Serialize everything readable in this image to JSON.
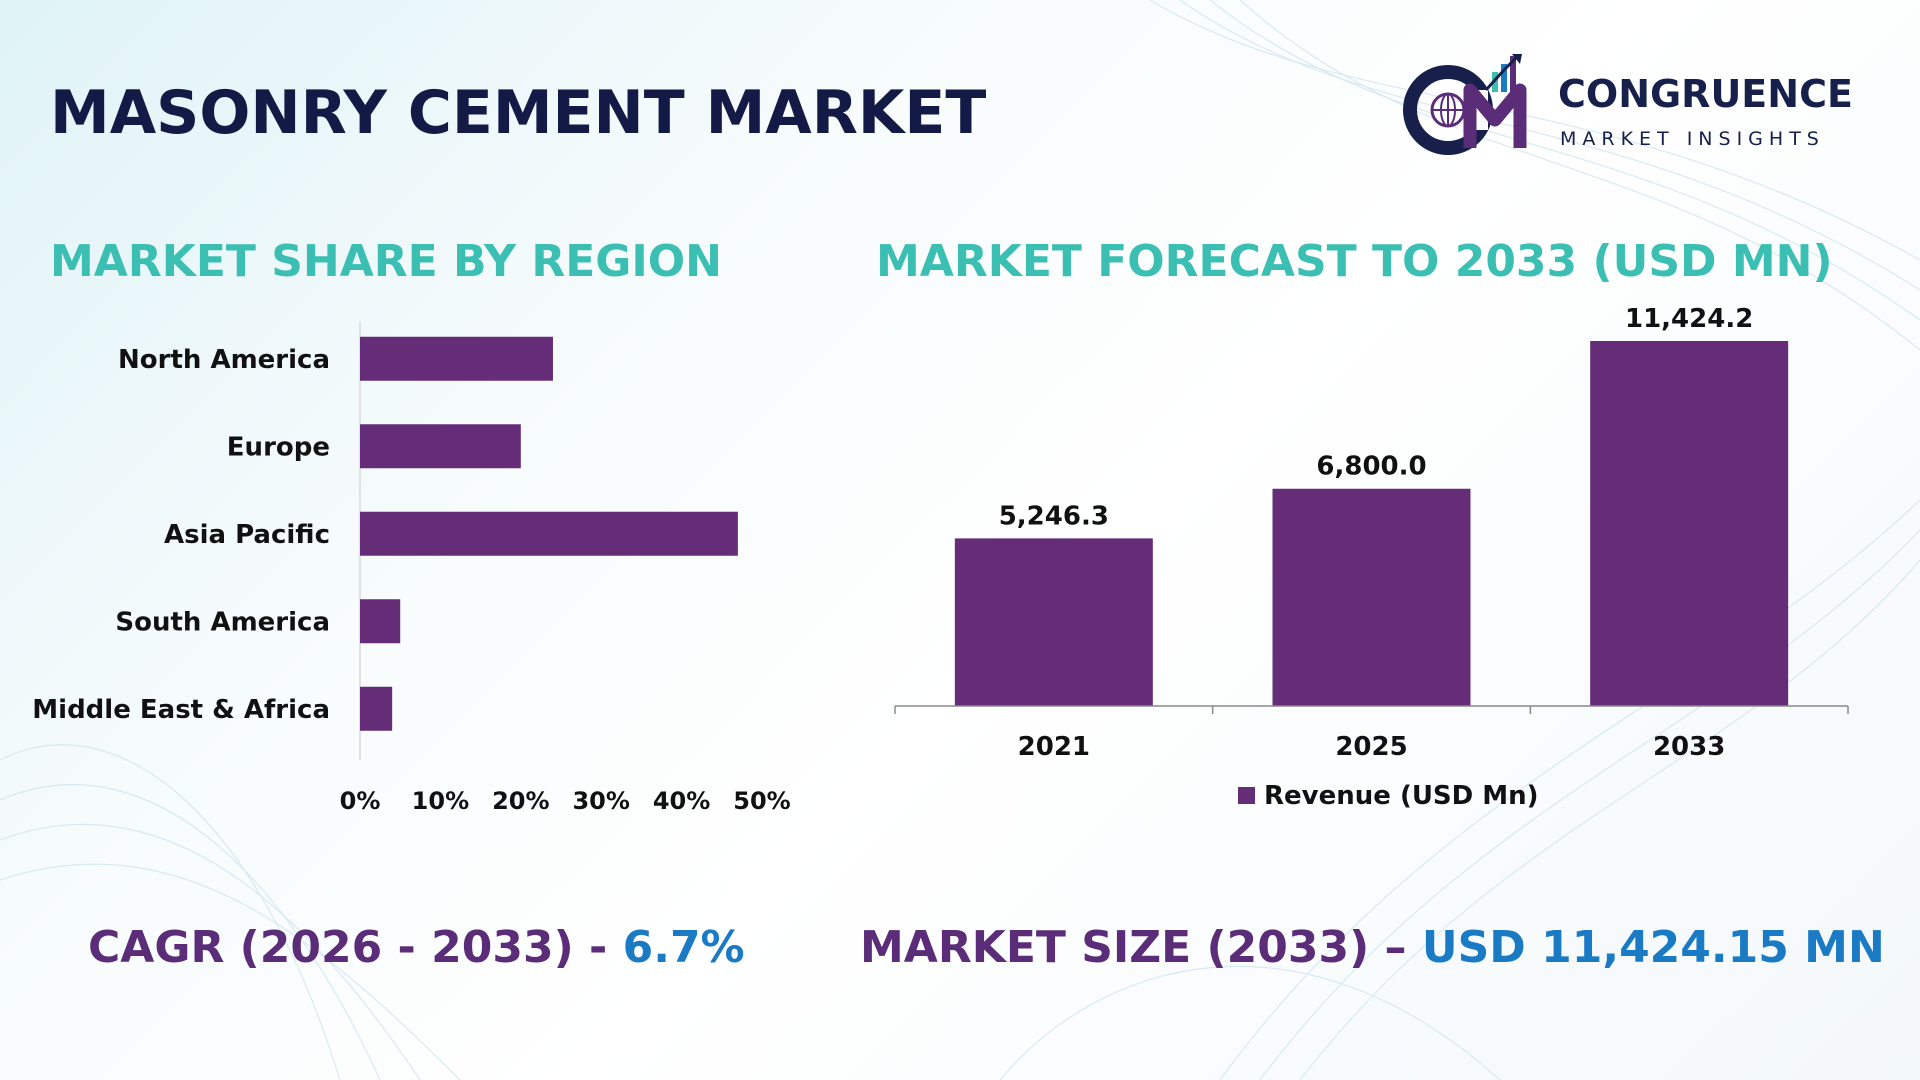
{
  "header": {
    "title": "MASONRY CEMENT MARKET",
    "logo_name": "CONGRUENCE",
    "logo_sub": "MARKET INSIGHTS",
    "logo_letters": "CM"
  },
  "colors": {
    "bar": "#652d78",
    "section_title": "#3bbfb3",
    "stat_label": "#5b2c78",
    "stat_value": "#1a7ac4",
    "title": "#131a45"
  },
  "sections": {
    "region_title": "MARKET SHARE BY REGION",
    "forecast_title": "MARKET FORECAST TO 2033 (USD MN)"
  },
  "stats": {
    "cagr_label": "CAGR (2026 - 2033) - ",
    "cagr_value": "6.7%",
    "size_label": "MARKET SIZE (2033) – ",
    "size_value": "USD 11,424.15 MN"
  },
  "chart_data": [
    {
      "type": "bar",
      "orientation": "horizontal",
      "title": "MARKET SHARE BY REGION",
      "categories": [
        "North America",
        "Europe",
        "Asia Pacific",
        "South America",
        "Middle East & Africa"
      ],
      "values": [
        24,
        20,
        47,
        5,
        4
      ],
      "unit": "%",
      "xlim": [
        0,
        50
      ],
      "xticks": [
        "0%",
        "10%",
        "20%",
        "30%",
        "40%",
        "50%"
      ],
      "grid": false
    },
    {
      "type": "bar",
      "title": "MARKET FORECAST TO 2033 (USD MN)",
      "categories": [
        "2021",
        "2025",
        "2033"
      ],
      "series": [
        {
          "name": "Revenue (USD Mn)",
          "values": [
            5246.3,
            6800.0,
            11424.2
          ]
        }
      ],
      "data_labels": [
        "5,246.3",
        "6,800.0",
        "11,424.2"
      ],
      "ylim": [
        0,
        11424.2
      ],
      "legend": "bottom",
      "grid": false
    }
  ]
}
